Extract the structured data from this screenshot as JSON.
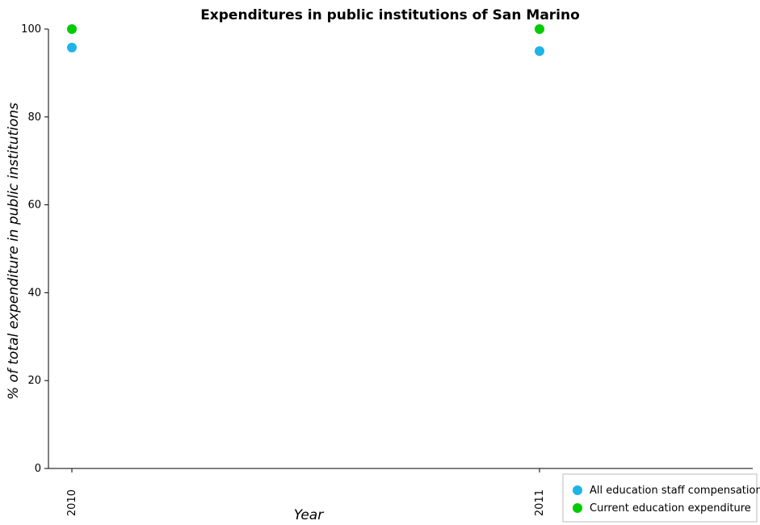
{
  "chart_data": {
    "type": "scatter",
    "title": "Expenditures in public institutions of San Marino",
    "xlabel": "Year",
    "ylabel": "% of total expenditure in public institutions",
    "categories": [
      "2010",
      "2011"
    ],
    "ylim": [
      0,
      100
    ],
    "yticks": [
      0,
      20,
      40,
      60,
      80,
      100
    ],
    "grid": false,
    "legend_position": "bottom-right",
    "series": [
      {
        "name": "All education staff compensation",
        "color": "#1fb4e6",
        "values": [
          95.8,
          95.0
        ]
      },
      {
        "name": "Current education expenditure",
        "color": "#00cc00",
        "values": [
          100.0,
          100.0
        ]
      }
    ]
  }
}
